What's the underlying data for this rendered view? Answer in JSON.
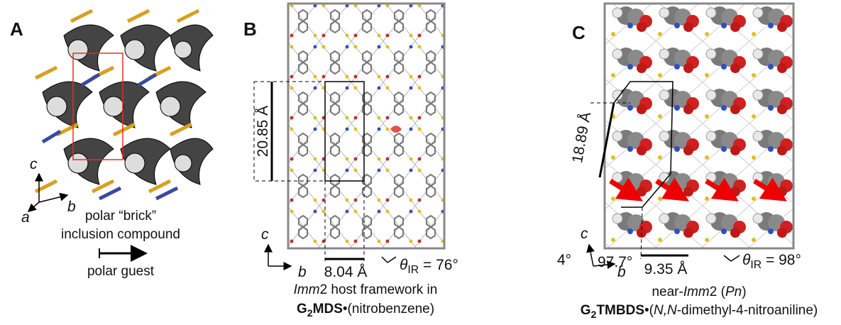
{
  "panel_a": {
    "label": "A",
    "axes": {
      "c": "c",
      "a": "a",
      "b": "b"
    },
    "caption": [
      "polar “brick”",
      "inclusion compound"
    ],
    "arrow_label": "polar guest"
  },
  "panel_b": {
    "label": "B",
    "height_label": "20.85 Å",
    "width_label": "8.04 Å",
    "axes": {
      "c": "c",
      "b": "b"
    },
    "theta": [
      {
        "text": "θ",
        "style": "italic"
      },
      {
        "text": "IR",
        "style": "sub"
      },
      {
        "text": " = 76°"
      }
    ],
    "caption": [
      [
        {
          "text": "Imm",
          "style": "italic"
        },
        {
          "text": "2 host framework in"
        }
      ],
      [
        {
          "text": "G",
          "style": "bold"
        },
        {
          "text": "2",
          "style": "sub-bold"
        },
        {
          "text": "MDS",
          "style": "bold"
        },
        {
          "text": "•(nitrobenzene)"
        }
      ]
    ]
  },
  "panel_c": {
    "label": "C",
    "height_label": "18.89 Å",
    "width_label": "9.35 Å",
    "axes": {
      "c": "c",
      "b": "b"
    },
    "angle_small": "4°",
    "angle_beta": "97.7°",
    "theta": [
      {
        "text": "θ",
        "style": "italic"
      },
      {
        "text": "IR",
        "style": "sub"
      },
      {
        "text": " = 98°"
      }
    ],
    "caption": [
      [
        {
          "text": "near-"
        },
        {
          "text": "Imm",
          "style": "italic"
        },
        {
          "text": "2 ("
        },
        {
          "text": "Pn",
          "style": "italic"
        },
        {
          "text": ")"
        }
      ],
      [
        {
          "text": "G",
          "style": "bold"
        },
        {
          "text": "2",
          "style": "sub-bold"
        },
        {
          "text": "TMBDS",
          "style": "bold"
        },
        {
          "text": "•("
        },
        {
          "text": "N,N",
          "style": "italic"
        },
        {
          "text": "-dimethyl-4-nitroaniline)"
        }
      ]
    ]
  }
}
